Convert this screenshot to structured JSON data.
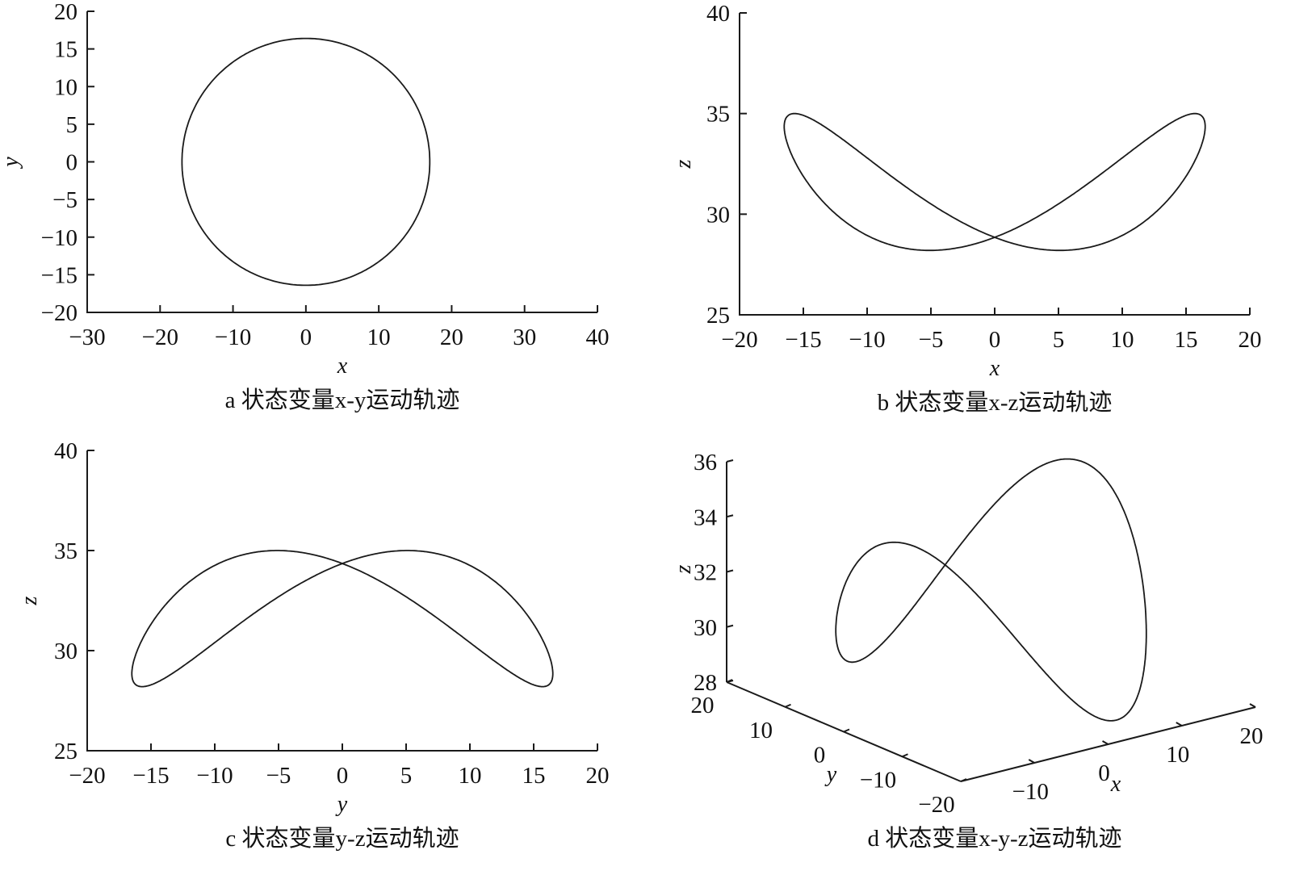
{
  "colors": {
    "line": "#1a1a1a",
    "axis": "#1a1a1a",
    "background": "#ffffff"
  },
  "chart_data": [
    {
      "id": "a",
      "type": "line",
      "title": "a 状态变量x-y运动轨迹",
      "xlabel": "x",
      "ylabel": "y",
      "xlim": [
        -30,
        40
      ],
      "ylim": [
        -20,
        20
      ],
      "xticks": [
        -30,
        -20,
        -10,
        0,
        10,
        20,
        30,
        40
      ],
      "yticks": [
        -20,
        -15,
        -10,
        -5,
        0,
        5,
        10,
        15,
        20
      ],
      "xtick_labels": [
        "−30",
        "−20",
        "−10",
        "0",
        "10",
        "20",
        "30",
        "40"
      ],
      "ytick_labels": [
        "−20",
        "−15",
        "−10",
        "−5",
        "0",
        "5",
        "10",
        "15",
        "20"
      ],
      "series": [
        {
          "name": "x-y trajectory",
          "shape": "closed orbit",
          "x_amplitude": 17,
          "y_amplitude": 16.4,
          "center": [
            0,
            0
          ]
        }
      ],
      "grid": false
    },
    {
      "id": "b",
      "type": "line",
      "title": "b 状态变量x-z运动轨迹",
      "xlabel": "x",
      "ylabel": "z",
      "xlim": [
        -20,
        20
      ],
      "ylim": [
        25,
        40
      ],
      "xticks": [
        -20,
        -15,
        -10,
        -5,
        0,
        5,
        10,
        15,
        20
      ],
      "yticks": [
        25,
        30,
        35,
        40
      ],
      "xtick_labels": [
        "−20",
        "−15",
        "−10",
        "−5",
        "0",
        "5",
        "10",
        "15",
        "20"
      ],
      "ytick_labels": [
        "25",
        "30",
        "35",
        "40"
      ],
      "grid": false
    },
    {
      "id": "c",
      "type": "line",
      "title": "c 状态变量y-z运动轨迹",
      "xlabel": "y",
      "ylabel": "z",
      "xlim": [
        -20,
        20
      ],
      "ylim": [
        25,
        40
      ],
      "xticks": [
        -20,
        -15,
        -10,
        -5,
        0,
        5,
        10,
        15,
        20
      ],
      "yticks": [
        25,
        30,
        35,
        40
      ],
      "xtick_labels": [
        "−20",
        "−15",
        "−10",
        "−5",
        "0",
        "5",
        "10",
        "15",
        "20"
      ],
      "ytick_labels": [
        "25",
        "30",
        "35",
        "40"
      ],
      "grid": false
    },
    {
      "id": "d",
      "type": "line3d",
      "title": "d 状态变量x-y-z运动轨迹",
      "xlabel": "x",
      "ylabel": "y",
      "zlabel": "z",
      "xlim": [
        -20,
        20
      ],
      "ylim": [
        -20,
        20
      ],
      "zlim": [
        28,
        36
      ],
      "xticks": [
        -10,
        0,
        10,
        20
      ],
      "xtick_labels": [
        "−10",
        "0",
        "10",
        "20"
      ],
      "yticks": [
        20,
        10,
        0,
        -10,
        -20
      ],
      "ytick_labels": [
        "20",
        "10",
        "0",
        "−10",
        "−20"
      ],
      "zticks": [
        28,
        30,
        32,
        34,
        36
      ],
      "ztick_labels": [
        "28",
        "30",
        "32",
        "34",
        "36"
      ],
      "grid": false
    }
  ],
  "trajectory": {
    "description": "periodic orbit x=A cos t, y=B sin t, z=z0+zA cos(2t-phase)",
    "x_amplitude": 16.5,
    "y_amplitude": 16.5,
    "z_mean": 31.6,
    "z_amplitude": 3.4,
    "z_phase_deg": 36
  }
}
